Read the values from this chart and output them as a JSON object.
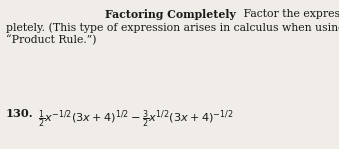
{
  "background_color": "#f0ede8",
  "text_color": "#1a1a1a",
  "font_size_body": 7.8,
  "font_size_math": 8.2,
  "bold_heading": "Factoring Completely",
  "line1_normal": "   Factor the expression com-",
  "line2": "pletely. (This type of expression arises in calculus when using the",
  "line3": "“Product Rule.”)",
  "problem_number": "130.",
  "math_expr": "$\\frac{1}{2}x^{-1/2}(3x + 4)^{1/2} - \\frac{3}{2}x^{1/2}(3x + 4)^{-1/2}$"
}
